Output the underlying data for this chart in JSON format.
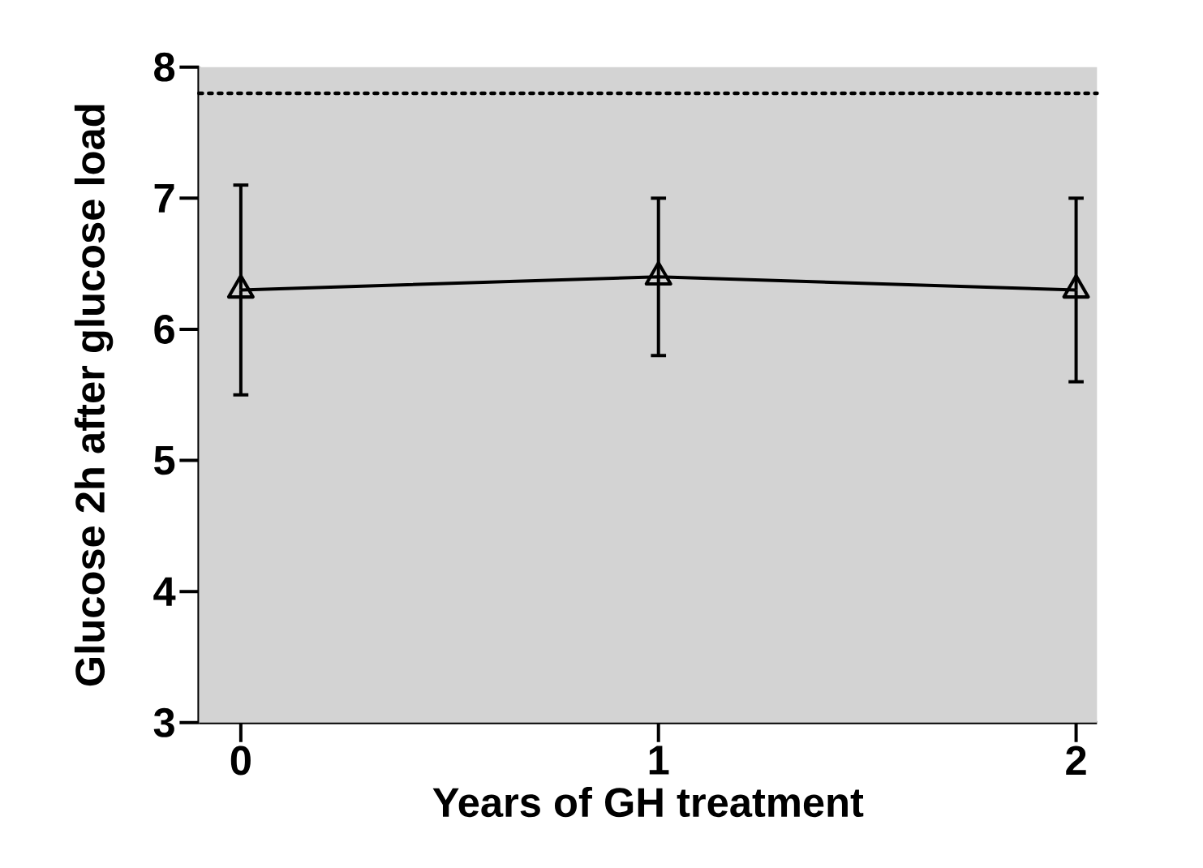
{
  "chart_data": {
    "type": "line",
    "xlabel": "Years of GH treatment",
    "ylabel": "Glucose 2h after glucose load",
    "x": [
      0,
      1,
      2
    ],
    "series": [
      {
        "color": "#000000",
        "values": [
          6.3,
          6.4,
          6.3
        ],
        "errors": [
          [
            5.5,
            7.1
          ],
          [
            5.8,
            7.0
          ],
          [
            5.6,
            7.0
          ]
        ]
      }
    ],
    "xlim": [
      -0.1,
      2.05
    ],
    "ylim": [
      3,
      8
    ],
    "xticks": [
      0,
      1,
      2
    ],
    "yticks": [
      3,
      4,
      5,
      6,
      7,
      8
    ],
    "ref_lines": [
      {
        "axis": "y",
        "value": 7.8,
        "line_style": "dotted",
        "color": "#000000"
      }
    ],
    "bands": [
      {
        "axis": "y",
        "from": 3,
        "to": 8,
        "color": "#d3d3d3"
      }
    ],
    "marker": "triangle",
    "line_style": "solid",
    "grid": false
  }
}
